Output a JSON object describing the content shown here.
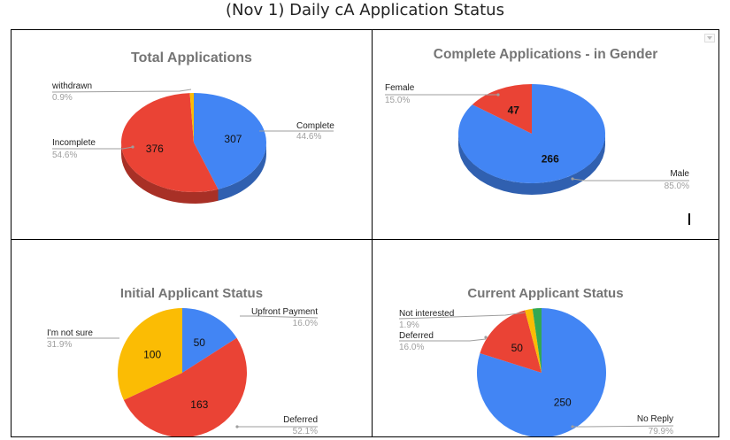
{
  "title": "(Nov 1) Daily cA Application Status",
  "chart_data": [
    {
      "type": "pie",
      "title": "Total Applications",
      "slices": [
        {
          "label": "Complete",
          "value": 307,
          "percent": "44.6%",
          "color": "#4285f4"
        },
        {
          "label": "Incomplete",
          "value": 376,
          "percent": "54.6%",
          "color": "#ea4335"
        },
        {
          "label": "withdrawn",
          "value": 6,
          "percent": "0.9%",
          "color": "#fbbc04"
        }
      ]
    },
    {
      "type": "pie",
      "title": "Complete Applications - in Gender",
      "slices": [
        {
          "label": "Male",
          "value": 266,
          "percent": "85.0%",
          "color": "#4285f4"
        },
        {
          "label": "Female",
          "value": 47,
          "percent": "15.0%",
          "color": "#ea4335"
        }
      ]
    },
    {
      "type": "pie",
      "title": "Initial Applicant Status",
      "slices": [
        {
          "label": "Upfront Payment",
          "value": 50,
          "percent": "16.0%",
          "color": "#4285f4"
        },
        {
          "label": "Deferred",
          "value": 163,
          "percent": "52.1%",
          "color": "#ea4335"
        },
        {
          "label": "I'm not sure",
          "value": 100,
          "percent": "31.9%",
          "color": "#fbbc04"
        }
      ]
    },
    {
      "type": "pie",
      "title": "Current Applicant Status",
      "slices": [
        {
          "label": "No Reply",
          "value": 250,
          "percent": "79.9%",
          "color": "#4285f4"
        },
        {
          "label": "Deferred",
          "value": 50,
          "percent": "16.0%",
          "color": "#ea4335"
        },
        {
          "label": "Not interested",
          "value": 6,
          "percent": "1.9%",
          "color": "#fbbc04"
        },
        {
          "label": "",
          "value": 7,
          "percent": "",
          "color": "#34a853"
        }
      ]
    }
  ]
}
